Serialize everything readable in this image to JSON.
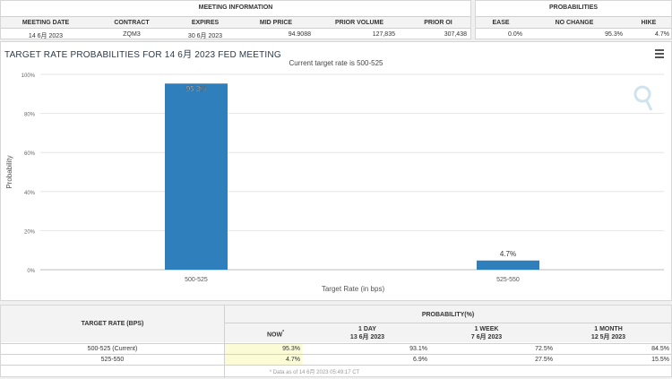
{
  "meeting_info": {
    "section_title": "MEETING INFORMATION",
    "headers": [
      "MEETING DATE",
      "CONTRACT",
      "EXPIRES",
      "MID PRICE",
      "PRIOR VOLUME",
      "PRIOR OI"
    ],
    "values": [
      "14 6月 2023",
      "ZQM3",
      "30 6月 2023",
      "94.9088",
      "127,835",
      "307,438"
    ]
  },
  "probabilities": {
    "section_title": "PROBABILITIES",
    "headers": [
      "EASE",
      "NO CHANGE",
      "HIKE"
    ],
    "values": [
      "0.0%",
      "95.3%",
      "4.7%"
    ]
  },
  "chart_data": {
    "type": "bar",
    "title": "TARGET RATE PROBABILITIES FOR 14 6月 2023 FED MEETING",
    "subtitle": "Current target rate is 500-525",
    "categories": [
      "500-525",
      "525-550"
    ],
    "values": [
      95.3,
      4.7
    ],
    "value_labels": [
      "95.3%",
      "4.7%"
    ],
    "xlabel": "Target Rate (in bps)",
    "ylabel": "Probability",
    "ylim": [
      0,
      100
    ],
    "y_ticks": [
      "0%",
      "20%",
      "40%",
      "60%",
      "80%",
      "100%"
    ],
    "bar_color": "#2f7fbd",
    "grid": true
  },
  "prob_table": {
    "target_header": "TARGET RATE (BPS)",
    "prob_header": "PROBABILITY(%)",
    "cols": [
      {
        "label": "NOW",
        "sub": "",
        "marker": "*"
      },
      {
        "label": "1 DAY",
        "sub": "13 6月 2023",
        "marker": ""
      },
      {
        "label": "1 WEEK",
        "sub": "7 6月 2023",
        "marker": ""
      },
      {
        "label": "1 MONTH",
        "sub": "12 5月 2023",
        "marker": ""
      }
    ],
    "rows": [
      {
        "rate": "500-525 (Current)",
        "values": [
          "95.3%",
          "93.1%",
          "72.5%",
          "84.5%"
        ]
      },
      {
        "rate": "525-550",
        "values": [
          "4.7%",
          "6.9%",
          "27.5%",
          "15.5%"
        ]
      }
    ],
    "footnote": "* Data as of 14 6月 2023 05:49:17 CT"
  }
}
